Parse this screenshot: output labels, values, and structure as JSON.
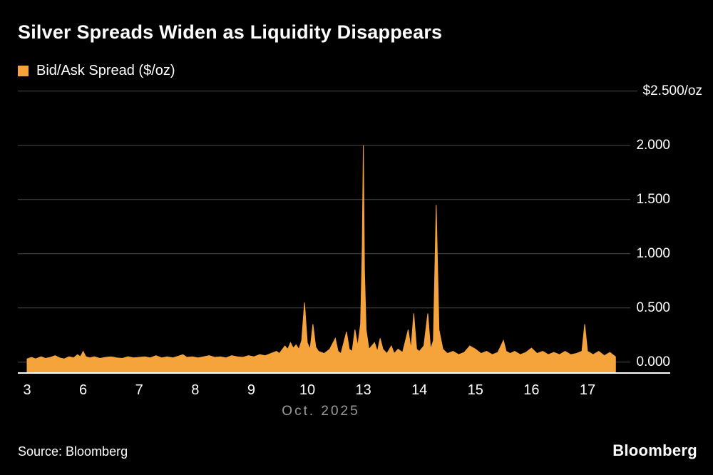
{
  "footer": {
    "source": "Source: Bloomberg",
    "logo": "Bloomberg"
  },
  "colors": {
    "accent": "#F5A33B",
    "grid": "#4a4a4a",
    "axis_line": "#ffffff",
    "background": "#000000",
    "muted_text": "#9b9b9b"
  },
  "chart_data": {
    "type": "area",
    "title": "Silver Spreads Widen as Liquidity Disappears",
    "series_name": "Bid/Ask Spread ($/oz)",
    "unit": "$/oz",
    "xlabel": "Oct. 2025",
    "ylim": [
      -0.1,
      2.5
    ],
    "grid": true,
    "legend_position": "top-left",
    "y_ticks": [
      {
        "value": 2.5,
        "label": "$2.500/oz"
      },
      {
        "value": 2.0,
        "label": "2.000"
      },
      {
        "value": 1.5,
        "label": "1.500"
      },
      {
        "value": 1.0,
        "label": "1.000"
      },
      {
        "value": 0.5,
        "label": "0.500"
      },
      {
        "value": 0.0,
        "label": "0.000"
      }
    ],
    "x_ticks": [
      {
        "index": 0,
        "label": "3"
      },
      {
        "index": 1,
        "label": "6"
      },
      {
        "index": 2,
        "label": "7"
      },
      {
        "index": 3,
        "label": "8"
      },
      {
        "index": 4,
        "label": "9"
      },
      {
        "index": 5,
        "label": "10"
      },
      {
        "index": 6,
        "label": "13"
      },
      {
        "index": 7,
        "label": "14"
      },
      {
        "index": 8,
        "label": "15"
      },
      {
        "index": 9,
        "label": "16"
      },
      {
        "index": 10,
        "label": "17"
      }
    ],
    "points": [
      [
        0,
        0.03
      ],
      [
        0.08,
        0.045
      ],
      [
        0.15,
        0.03
      ],
      [
        0.25,
        0.05
      ],
      [
        0.33,
        0.035
      ],
      [
        0.42,
        0.045
      ],
      [
        0.5,
        0.06
      ],
      [
        0.58,
        0.04
      ],
      [
        0.66,
        0.03
      ],
      [
        0.75,
        0.05
      ],
      [
        0.83,
        0.04
      ],
      [
        0.9,
        0.07
      ],
      [
        0.95,
        0.05
      ],
      [
        1.0,
        0.1
      ],
      [
        1.05,
        0.05
      ],
      [
        1.12,
        0.04
      ],
      [
        1.2,
        0.05
      ],
      [
        1.3,
        0.035
      ],
      [
        1.4,
        0.045
      ],
      [
        1.5,
        0.05
      ],
      [
        1.6,
        0.04
      ],
      [
        1.7,
        0.035
      ],
      [
        1.8,
        0.05
      ],
      [
        1.9,
        0.04
      ],
      [
        2.0,
        0.045
      ],
      [
        2.1,
        0.05
      ],
      [
        2.2,
        0.04
      ],
      [
        2.3,
        0.06
      ],
      [
        2.4,
        0.04
      ],
      [
        2.5,
        0.05
      ],
      [
        2.6,
        0.04
      ],
      [
        2.7,
        0.055
      ],
      [
        2.78,
        0.07
      ],
      [
        2.85,
        0.045
      ],
      [
        2.95,
        0.05
      ],
      [
        3.05,
        0.04
      ],
      [
        3.15,
        0.05
      ],
      [
        3.25,
        0.06
      ],
      [
        3.35,
        0.045
      ],
      [
        3.45,
        0.05
      ],
      [
        3.55,
        0.04
      ],
      [
        3.65,
        0.06
      ],
      [
        3.75,
        0.05
      ],
      [
        3.85,
        0.045
      ],
      [
        3.95,
        0.06
      ],
      [
        4.05,
        0.05
      ],
      [
        4.15,
        0.07
      ],
      [
        4.25,
        0.06
      ],
      [
        4.35,
        0.08
      ],
      [
        4.45,
        0.1
      ],
      [
        4.5,
        0.08
      ],
      [
        4.6,
        0.15
      ],
      [
        4.65,
        0.12
      ],
      [
        4.7,
        0.18
      ],
      [
        4.75,
        0.13
      ],
      [
        4.8,
        0.16
      ],
      [
        4.85,
        0.12
      ],
      [
        4.9,
        0.2
      ],
      [
        4.95,
        0.55
      ],
      [
        5.0,
        0.18
      ],
      [
        5.05,
        0.12
      ],
      [
        5.1,
        0.35
      ],
      [
        5.15,
        0.14
      ],
      [
        5.2,
        0.1
      ],
      [
        5.3,
        0.08
      ],
      [
        5.4,
        0.12
      ],
      [
        5.5,
        0.22
      ],
      [
        5.55,
        0.1
      ],
      [
        5.6,
        0.08
      ],
      [
        5.7,
        0.28
      ],
      [
        5.75,
        0.12
      ],
      [
        5.8,
        0.1
      ],
      [
        5.85,
        0.3
      ],
      [
        5.9,
        0.15
      ],
      [
        5.95,
        0.35
      ],
      [
        5.98,
        1.05
      ],
      [
        6.0,
        2.0
      ],
      [
        6.02,
        0.85
      ],
      [
        6.05,
        0.3
      ],
      [
        6.1,
        0.12
      ],
      [
        6.2,
        0.18
      ],
      [
        6.25,
        0.1
      ],
      [
        6.3,
        0.22
      ],
      [
        6.35,
        0.12
      ],
      [
        6.42,
        0.08
      ],
      [
        6.5,
        0.15
      ],
      [
        6.55,
        0.08
      ],
      [
        6.62,
        0.12
      ],
      [
        6.7,
        0.09
      ],
      [
        6.8,
        0.3
      ],
      [
        6.85,
        0.12
      ],
      [
        6.9,
        0.45
      ],
      [
        6.95,
        0.12
      ],
      [
        7.0,
        0.1
      ],
      [
        7.08,
        0.15
      ],
      [
        7.15,
        0.45
      ],
      [
        7.2,
        0.12
      ],
      [
        7.25,
        0.2
      ],
      [
        7.3,
        1.45
      ],
      [
        7.35,
        0.3
      ],
      [
        7.42,
        0.12
      ],
      [
        7.5,
        0.08
      ],
      [
        7.6,
        0.1
      ],
      [
        7.7,
        0.07
      ],
      [
        7.8,
        0.09
      ],
      [
        7.9,
        0.15
      ],
      [
        8.0,
        0.12
      ],
      [
        8.1,
        0.08
      ],
      [
        8.2,
        0.1
      ],
      [
        8.3,
        0.07
      ],
      [
        8.4,
        0.09
      ],
      [
        8.5,
        0.2
      ],
      [
        8.55,
        0.1
      ],
      [
        8.62,
        0.08
      ],
      [
        8.7,
        0.1
      ],
      [
        8.8,
        0.07
      ],
      [
        8.9,
        0.09
      ],
      [
        9.0,
        0.13
      ],
      [
        9.1,
        0.08
      ],
      [
        9.2,
        0.1
      ],
      [
        9.3,
        0.07
      ],
      [
        9.4,
        0.09
      ],
      [
        9.5,
        0.07
      ],
      [
        9.6,
        0.1
      ],
      [
        9.7,
        0.07
      ],
      [
        9.8,
        0.08
      ],
      [
        9.9,
        0.1
      ],
      [
        9.95,
        0.35
      ],
      [
        10.0,
        0.1
      ],
      [
        10.1,
        0.07
      ],
      [
        10.2,
        0.1
      ],
      [
        10.3,
        0.06
      ],
      [
        10.4,
        0.09
      ],
      [
        10.5,
        0.05
      ]
    ]
  }
}
